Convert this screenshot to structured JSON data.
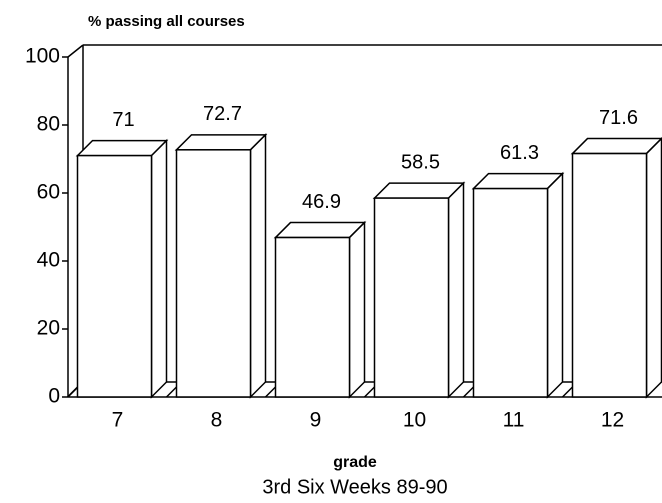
{
  "chart_data": {
    "type": "bar3d",
    "title": "3rd Six Weeks 89-90",
    "y_label": "% passing all courses",
    "x_label": "grade",
    "categories": [
      "7",
      "8",
      "9",
      "10",
      "11",
      "12"
    ],
    "values": [
      71,
      72.7,
      46.9,
      58.5,
      61.3,
      71.6
    ],
    "ylim": [
      0,
      100
    ],
    "yticks": [
      0,
      20,
      40,
      60,
      80,
      100
    ],
    "grid": false,
    "color": "#ffffff"
  }
}
